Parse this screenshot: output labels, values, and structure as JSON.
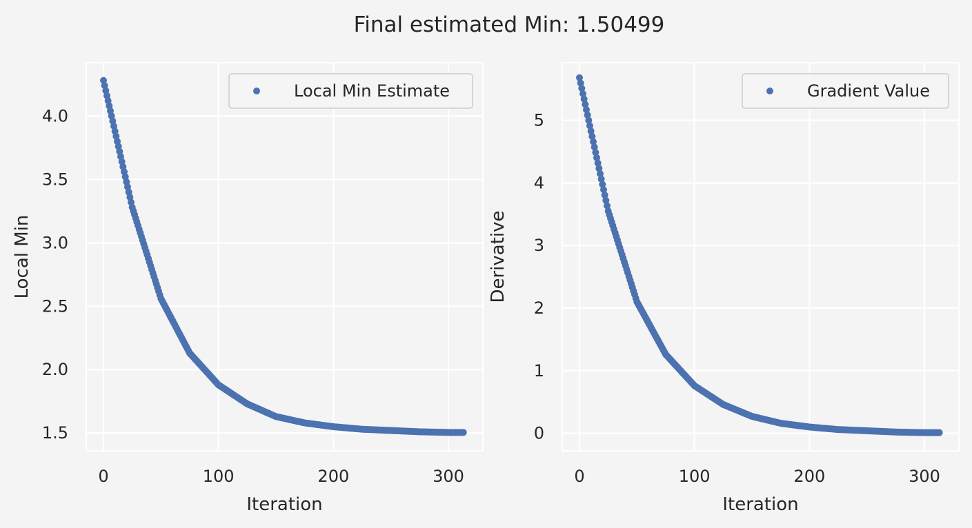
{
  "figure": {
    "title": "Final estimated Min: 1.50499"
  },
  "style": {
    "background": "#f4f4f4",
    "axes_face": "#f4f4f4",
    "grid_color": "#ffffff",
    "marker_color": "#4c72b0",
    "text_color": "#262626"
  },
  "chart_data": [
    {
      "type": "scatter",
      "title": "",
      "xlabel": "Iteration",
      "ylabel": "Local Min",
      "xlim": [
        -15,
        330
      ],
      "ylim": [
        1.36,
        4.42
      ],
      "xticks": [
        0,
        100,
        200,
        300
      ],
      "yticks": [
        1.5,
        2.0,
        2.5,
        3.0,
        3.5,
        4.0
      ],
      "ytick_labels": [
        "1.5",
        "2.0",
        "2.5",
        "3.0",
        "3.5",
        "4.0"
      ],
      "grid": true,
      "legend": {
        "entries": [
          "Local Min Estimate"
        ],
        "placement": "upper-right"
      },
      "series": [
        {
          "name": "Local Min Estimate",
          "marker": "o",
          "x_start": 0,
          "x_end": 313,
          "x_sample": [
            0,
            25,
            50,
            75,
            100,
            125,
            150,
            175,
            200,
            225,
            250,
            275,
            300,
            313
          ],
          "y_sample": [
            4.28,
            3.28,
            2.56,
            2.13,
            1.88,
            1.73,
            1.63,
            1.58,
            1.55,
            1.53,
            1.52,
            1.51,
            1.505,
            1.505
          ]
        }
      ]
    },
    {
      "type": "scatter",
      "title": "",
      "xlabel": "Iteration",
      "ylabel": "Derivative",
      "xlim": [
        -15,
        330
      ],
      "ylim": [
        -0.28,
        5.92
      ],
      "xticks": [
        0,
        100,
        200,
        300
      ],
      "yticks": [
        0,
        1,
        2,
        3,
        4,
        5
      ],
      "ytick_labels": [
        "0",
        "1",
        "2",
        "3",
        "4",
        "5"
      ],
      "grid": true,
      "legend": {
        "entries": [
          "Gradient Value"
        ],
        "placement": "upper-right"
      },
      "series": [
        {
          "name": "Gradient Value",
          "marker": "o",
          "x_start": 0,
          "x_end": 313,
          "x_sample": [
            0,
            25,
            50,
            75,
            100,
            125,
            150,
            175,
            200,
            225,
            250,
            275,
            300,
            313
          ],
          "y_sample": [
            5.68,
            3.55,
            2.1,
            1.26,
            0.76,
            0.46,
            0.27,
            0.16,
            0.1,
            0.06,
            0.04,
            0.02,
            0.01,
            0.01
          ]
        }
      ]
    }
  ]
}
